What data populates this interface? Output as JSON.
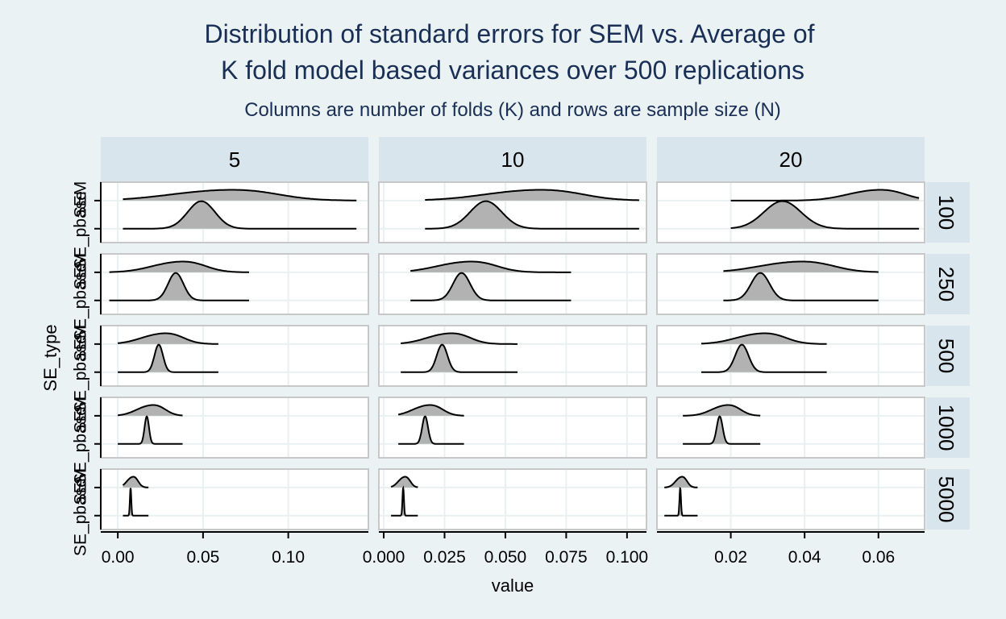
{
  "chart_data": {
    "type": "ridgeline-density",
    "title_lines": [
      "Distribution of standard errors for SEM vs. Average of",
      "K fold model based variances over 500 replications"
    ],
    "subtitle": "Columns are number of folds (K) and rows are sample size (N)",
    "xlabel": "value",
    "ylabel": "SE_type",
    "y_categories": [
      "SE_pbaseSEM",
      "SE_pbaseSEM"
    ],
    "y_tick_labels_rendered": [
      "SEM",
      "SE_pbase"
    ],
    "columns": [
      {
        "label": "5",
        "xlim": [
          -0.01,
          0.147
        ],
        "xticks": [
          0.0,
          0.05,
          0.1
        ],
        "xtick_labels": [
          "0.00",
          "0.05",
          "0.10"
        ]
      },
      {
        "label": "10",
        "xlim": [
          -0.002,
          0.108
        ],
        "xticks": [
          0.0,
          0.025,
          0.05,
          0.075,
          0.1
        ],
        "xtick_labels": [
          "0.000",
          "0.025",
          "0.050",
          "0.075",
          "0.100"
        ]
      },
      {
        "label": "20",
        "xlim": [
          0.0,
          0.0725
        ],
        "xticks": [
          0.02,
          0.04,
          0.06
        ],
        "xtick_labels": [
          "0.02",
          "0.04",
          "0.06"
        ]
      }
    ],
    "rows": [
      {
        "label": "100"
      },
      {
        "label": "250"
      },
      {
        "label": "500"
      },
      {
        "label": "1000"
      },
      {
        "label": "5000"
      }
    ],
    "panels": [
      [
        {
          "sem": {
            "range": [
              0.003,
              0.14
            ],
            "peak": 0.057,
            "sd": 0.028,
            "height": 0.45
          },
          "pbase": {
            "range": [
              0.003,
              0.14
            ],
            "peak": 0.049,
            "sd": 0.008,
            "height": 1.0
          }
        },
        {
          "sem": {
            "range": [
              -0.005,
              0.077
            ],
            "peak": 0.033,
            "sd": 0.014,
            "height": 0.45
          },
          "pbase": {
            "range": [
              -0.005,
              0.077
            ],
            "peak": 0.034,
            "sd": 0.0045,
            "height": 1.0
          }
        },
        {
          "sem": {
            "range": [
              0.0,
              0.059
            ],
            "peak": 0.024,
            "sd": 0.011,
            "height": 0.45
          },
          "pbase": {
            "range": [
              0.0,
              0.059
            ],
            "peak": 0.024,
            "sd": 0.0025,
            "height": 1.0
          }
        },
        {
          "sem": {
            "range": [
              0.0,
              0.038
            ],
            "peak": 0.018,
            "sd": 0.0075,
            "height": 0.45
          },
          "pbase": {
            "range": [
              0.0,
              0.038
            ],
            "peak": 0.017,
            "sd": 0.0013,
            "height": 1.0
          }
        },
        {
          "sem": {
            "range": [
              0.003,
              0.018
            ],
            "peak": 0.008,
            "sd": 0.003,
            "height": 0.45
          },
          "pbase": {
            "range": [
              0.003,
              0.018
            ],
            "peak": 0.0075,
            "sd": 0.0004,
            "height": 1.0
          }
        }
      ],
      [
        {
          "sem": {
            "range": [
              0.017,
              0.105
            ],
            "peak": 0.058,
            "sd": 0.018,
            "height": 0.45
          },
          "pbase": {
            "range": [
              0.017,
              0.105
            ],
            "peak": 0.042,
            "sd": 0.0065,
            "height": 1.0
          }
        },
        {
          "sem": {
            "range": [
              0.011,
              0.077
            ],
            "peak": 0.032,
            "sd": 0.011,
            "height": 0.45
          },
          "pbase": {
            "range": [
              0.011,
              0.077
            ],
            "peak": 0.032,
            "sd": 0.0035,
            "height": 1.0
          }
        },
        {
          "sem": {
            "range": [
              0.007,
              0.055
            ],
            "peak": 0.025,
            "sd": 0.008,
            "height": 0.45
          },
          "pbase": {
            "range": [
              0.007,
              0.055
            ],
            "peak": 0.024,
            "sd": 0.0022,
            "height": 1.0
          }
        },
        {
          "sem": {
            "range": [
              0.006,
              0.033
            ],
            "peak": 0.017,
            "sd": 0.0055,
            "height": 0.45
          },
          "pbase": {
            "range": [
              0.006,
              0.033
            ],
            "peak": 0.017,
            "sd": 0.0012,
            "height": 1.0
          }
        },
        {
          "sem": {
            "range": [
              0.003,
              0.014
            ],
            "peak": 0.008,
            "sd": 0.0022,
            "height": 0.45
          },
          "pbase": {
            "range": [
              0.003,
              0.014
            ],
            "peak": 0.008,
            "sd": 0.0003,
            "height": 1.0
          }
        }
      ],
      [
        {
          "sem": {
            "range": [
              0.02,
              0.071
            ],
            "peak": 0.058,
            "sd": 0.007,
            "height": 0.45
          },
          "pbase": {
            "range": [
              0.02,
              0.071
            ],
            "peak": 0.034,
            "sd": 0.005,
            "height": 1.0
          }
        },
        {
          "sem": {
            "range": [
              0.018,
              0.06
            ],
            "peak": 0.036,
            "sd": 0.009,
            "height": 0.45
          },
          "pbase": {
            "range": [
              0.018,
              0.06
            ],
            "peak": 0.028,
            "sd": 0.0025,
            "height": 1.0
          }
        },
        {
          "sem": {
            "range": [
              0.012,
              0.046
            ],
            "peak": 0.027,
            "sd": 0.006,
            "height": 0.45
          },
          "pbase": {
            "range": [
              0.012,
              0.046
            ],
            "peak": 0.023,
            "sd": 0.0018,
            "height": 1.0
          }
        },
        {
          "sem": {
            "range": [
              0.007,
              0.028
            ],
            "peak": 0.018,
            "sd": 0.0035,
            "height": 0.45
          },
          "pbase": {
            "range": [
              0.007,
              0.028
            ],
            "peak": 0.017,
            "sd": 0.0008,
            "height": 1.0
          }
        },
        {
          "sem": {
            "range": [
              0.002,
              0.011
            ],
            "peak": 0.0063,
            "sd": 0.0014,
            "height": 0.45
          },
          "pbase": {
            "range": [
              0.002,
              0.011
            ],
            "peak": 0.0063,
            "sd": 0.0002,
            "height": 1.0
          }
        }
      ]
    ],
    "grid": true,
    "colors": {
      "background": "#eaf2f3",
      "panel": "#ffffff",
      "panel_border": "#c8c8c8",
      "strip": "#d8e5ec",
      "density_fill": "#b2b2b2",
      "line": "#000000",
      "title": "#1a2f55",
      "gridline": "#e9f0f1"
    }
  }
}
